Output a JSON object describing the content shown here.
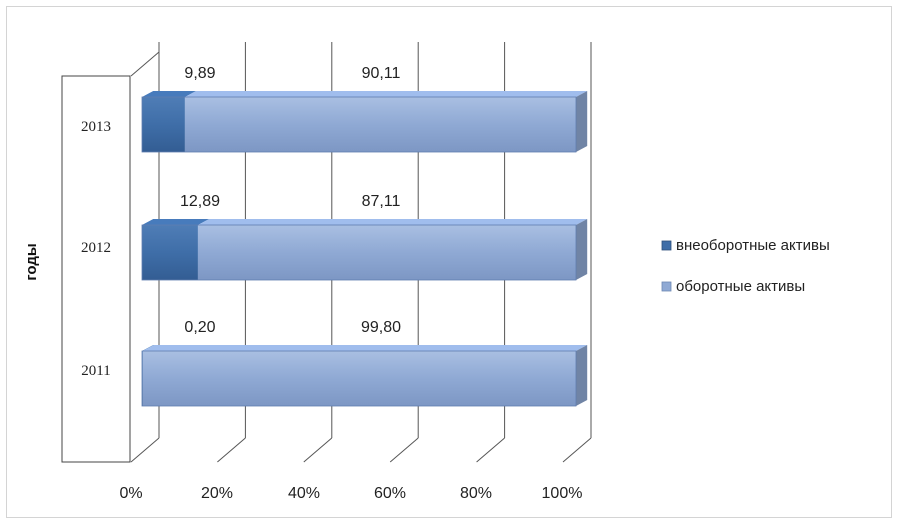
{
  "chart_data": {
    "type": "bar",
    "orientation": "horizontal",
    "stacked": "percent",
    "categories": [
      "2011",
      "2012",
      "2013"
    ],
    "series": [
      {
        "name": "внеоборотные активы",
        "values": [
          0.2,
          12.89,
          9.89
        ],
        "labels": [
          "0,20",
          "12,89",
          "9,89"
        ],
        "color": "#3f6ea8"
      },
      {
        "name": "оборотные активы",
        "values": [
          99.8,
          87.11,
          90.11
        ],
        "labels": [
          "99,80",
          "87,11",
          "90,11"
        ],
        "color": "#8fa9d4"
      }
    ],
    "ylabel": "годы",
    "xlim": [
      0,
      100
    ],
    "x_ticks": [
      "0%",
      "20%",
      "40%",
      "60%",
      "80%",
      "100%"
    ],
    "legend_position": "right",
    "grid": true
  }
}
